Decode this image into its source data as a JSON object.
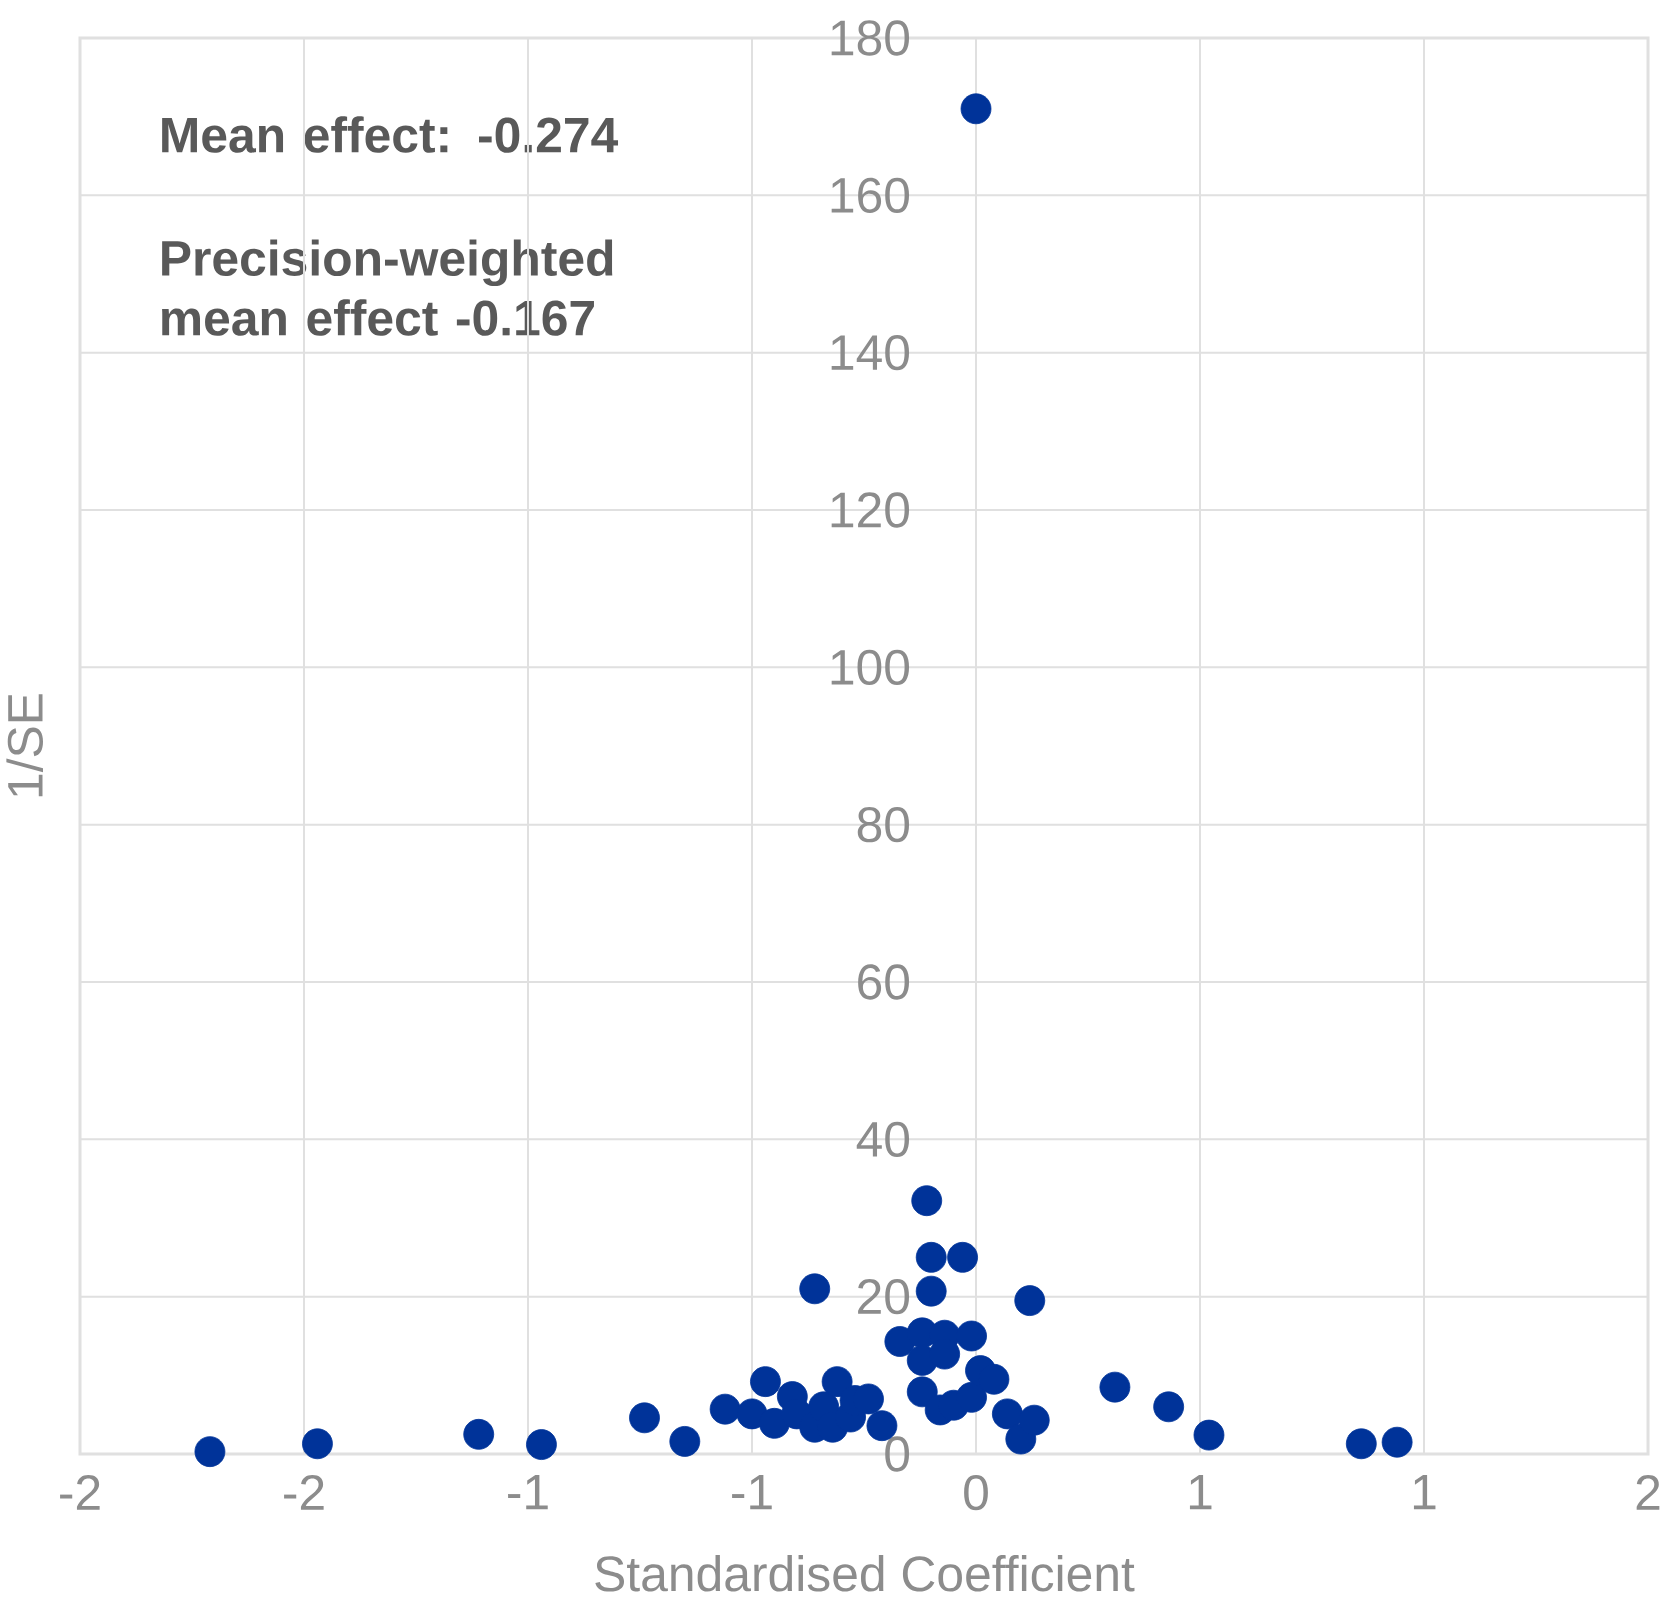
{
  "chart_data": {
    "type": "scatter",
    "xlabel": "Standardised Coefficient",
    "ylabel": "1/SE",
    "annotations": [
      "Mean effect: -0.274",
      "Precision-weighted mean effect -0.167"
    ],
    "x": [
      -1.71,
      -1.47,
      -1.11,
      -0.97,
      -0.74,
      -0.65,
      -0.56,
      -0.5,
      -0.47,
      -0.45,
      -0.41,
      -0.4,
      -0.36,
      -0.36,
      -0.35,
      -0.34,
      -0.32,
      -0.31,
      -0.28,
      -0.27,
      -0.24,
      -0.21,
      -0.17,
      -0.12,
      -0.12,
      -0.12,
      -0.11,
      -0.1,
      -0.1,
      -0.08,
      -0.07,
      -0.07,
      -0.05,
      -0.03,
      -0.01,
      -0.01,
      0.0,
      0.01,
      0.04,
      0.07,
      0.1,
      0.12,
      0.13,
      0.31,
      0.43,
      0.52,
      0.86,
      0.94
    ],
    "values": [
      0.3,
      1.3,
      2.5,
      1.2,
      4.6,
      1.6,
      5.7,
      5.1,
      9.2,
      3.9,
      7.3,
      5.1,
      3.4,
      21.0,
      null,
      6.0,
      3.4,
      9.2,
      4.7,
      6.8,
      7.0,
      3.6,
      14.3,
      15.4,
      11.9,
      7.9,
      32.2,
      25.0,
      20.7,
      5.6,
      15.1,
      12.7,
      6.2,
      25.0,
      15.0,
      7.2,
      171,
      10.6,
      9.5,
      5.1,
      1.9,
      19.5,
      4.3,
      8.5,
      6.0,
      2.4,
      1.3,
      1.5
    ],
    "color": "#003399",
    "marker": "circle",
    "grid": true,
    "xlim": [
      -2,
      1.5
    ],
    "ylim": [
      0,
      180
    ],
    "xticks": [
      -2,
      {
        "value": -1.5,
        "label": "-2"
      },
      -1,
      {
        "value": -0.5,
        "label": "-1"
      },
      0,
      {
        "value": 0.5,
        "label": "1"
      },
      1,
      {
        "value": 1.5,
        "label": "2"
      }
    ],
    "yticks": [
      0,
      20,
      40,
      60,
      80,
      100,
      120,
      140,
      160,
      180
    ]
  }
}
